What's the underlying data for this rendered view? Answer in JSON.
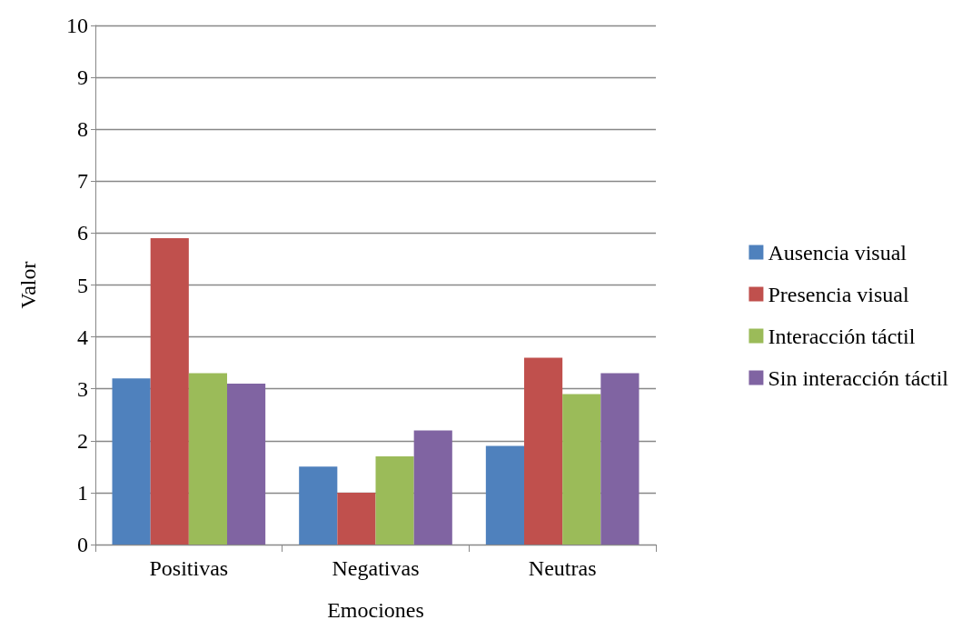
{
  "chart_data": {
    "type": "bar",
    "xlabel": "Emociones",
    "ylabel": "Valor",
    "categories": [
      "Positivas",
      "Negativas",
      "Neutras"
    ],
    "series": [
      {
        "name": "Ausencia visual",
        "color": "#4f81bd",
        "values": [
          3.2,
          1.5,
          1.9
        ]
      },
      {
        "name": "Presencia visual",
        "color": "#c0504d",
        "values": [
          5.9,
          1.0,
          3.6
        ]
      },
      {
        "name": "Interacción táctil",
        "color": "#9bbb59",
        "values": [
          3.3,
          1.7,
          2.9
        ]
      },
      {
        "name": "Sin interacción táctil",
        "color": "#8064a2",
        "values": [
          3.1,
          2.2,
          3.3
        ]
      }
    ],
    "ylim": [
      0,
      10
    ],
    "yticks": [
      0,
      1,
      2,
      3,
      4,
      5,
      6,
      7,
      8,
      9,
      10
    ],
    "grid": "y",
    "legend": "right"
  }
}
